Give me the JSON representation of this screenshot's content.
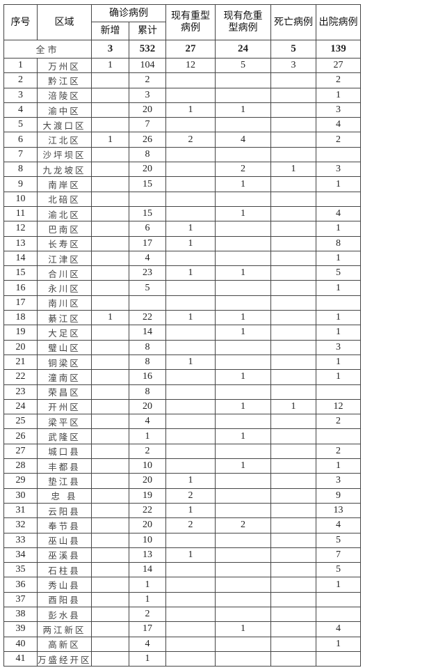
{
  "headers": {
    "index": "序号",
    "region": "区域",
    "confirmed": "确诊病例",
    "new": "新增",
    "cumulative": "累计",
    "severe": "现有重型病例",
    "critical": "现有危重型病例",
    "deaths": "死亡病例",
    "discharged": "出院病例"
  },
  "total": {
    "label": "全市",
    "new": "3",
    "cumulative": "532",
    "severe": "27",
    "critical": "24",
    "deaths": "5",
    "discharged": "139"
  },
  "rows": [
    [
      "1",
      "万州区",
      "1",
      "104",
      "12",
      "5",
      "3",
      "27"
    ],
    [
      "2",
      "黔江区",
      "",
      "2",
      "",
      "",
      "",
      "2"
    ],
    [
      "3",
      "涪陵区",
      "",
      "3",
      "",
      "",
      "",
      "1"
    ],
    [
      "4",
      "渝中区",
      "",
      "20",
      "1",
      "1",
      "",
      "3"
    ],
    [
      "5",
      "大渡口区",
      "",
      "7",
      "",
      "",
      "",
      "4"
    ],
    [
      "6",
      "江北区",
      "1",
      "26",
      "2",
      "4",
      "",
      "2"
    ],
    [
      "7",
      "沙坪坝区",
      "",
      "8",
      "",
      "",
      "",
      ""
    ],
    [
      "8",
      "九龙坡区",
      "",
      "20",
      "",
      "2",
      "1",
      "3"
    ],
    [
      "9",
      "南岸区",
      "",
      "15",
      "",
      "1",
      "",
      "1"
    ],
    [
      "10",
      "北碚区",
      "",
      "",
      "",
      "",
      "",
      ""
    ],
    [
      "11",
      "渝北区",
      "",
      "15",
      "",
      "1",
      "",
      "4"
    ],
    [
      "12",
      "巴南区",
      "",
      "6",
      "1",
      "",
      "",
      "1"
    ],
    [
      "13",
      "长寿区",
      "",
      "17",
      "1",
      "",
      "",
      "8"
    ],
    [
      "14",
      "江津区",
      "",
      "4",
      "",
      "",
      "",
      "1"
    ],
    [
      "15",
      "合川区",
      "",
      "23",
      "1",
      "1",
      "",
      "5"
    ],
    [
      "16",
      "永川区",
      "",
      "5",
      "",
      "",
      "",
      "1"
    ],
    [
      "17",
      "南川区",
      "",
      "",
      "",
      "",
      "",
      ""
    ],
    [
      "18",
      "綦江区",
      "1",
      "22",
      "1",
      "1",
      "",
      "1"
    ],
    [
      "19",
      "大足区",
      "",
      "14",
      "",
      "1",
      "",
      "1"
    ],
    [
      "20",
      "璧山区",
      "",
      "8",
      "",
      "",
      "",
      "3"
    ],
    [
      "21",
      "铜梁区",
      "",
      "8",
      "1",
      "",
      "",
      "1"
    ],
    [
      "22",
      "潼南区",
      "",
      "16",
      "",
      "1",
      "",
      "1"
    ],
    [
      "23",
      "荣昌区",
      "",
      "8",
      "",
      "",
      "",
      ""
    ],
    [
      "24",
      "开州区",
      "",
      "20",
      "",
      "1",
      "1",
      "12"
    ],
    [
      "25",
      "梁平区",
      "",
      "4",
      "",
      "",
      "",
      "2"
    ],
    [
      "26",
      "武隆区",
      "",
      "1",
      "",
      "1",
      "",
      ""
    ],
    [
      "27",
      "城口县",
      "",
      "2",
      "",
      "",
      "",
      "2"
    ],
    [
      "28",
      "丰都县",
      "",
      "10",
      "",
      "1",
      "",
      "1"
    ],
    [
      "29",
      "垫江县",
      "",
      "20",
      "1",
      "",
      "",
      "3"
    ],
    [
      "30",
      "忠 县",
      "",
      "19",
      "2",
      "",
      "",
      "9"
    ],
    [
      "31",
      "云阳县",
      "",
      "22",
      "1",
      "",
      "",
      "13"
    ],
    [
      "32",
      "奉节县",
      "",
      "20",
      "2",
      "2",
      "",
      "4"
    ],
    [
      "33",
      "巫山县",
      "",
      "10",
      "",
      "",
      "",
      "5"
    ],
    [
      "34",
      "巫溪县",
      "",
      "13",
      "1",
      "",
      "",
      "7"
    ],
    [
      "35",
      "石柱县",
      "",
      "14",
      "",
      "",
      "",
      "5"
    ],
    [
      "36",
      "秀山县",
      "",
      "1",
      "",
      "",
      "",
      "1"
    ],
    [
      "37",
      "酉阳县",
      "",
      "1",
      "",
      "",
      "",
      ""
    ],
    [
      "38",
      "彭水县",
      "",
      "2",
      "",
      "",
      "",
      ""
    ],
    [
      "39",
      "两江新区",
      "",
      "17",
      "",
      "1",
      "",
      "4"
    ],
    [
      "40",
      "高新区",
      "",
      "4",
      "",
      "",
      "",
      "1"
    ],
    [
      "41",
      "万盛经开区",
      "",
      "1",
      "",
      "",
      "",
      ""
    ]
  ]
}
